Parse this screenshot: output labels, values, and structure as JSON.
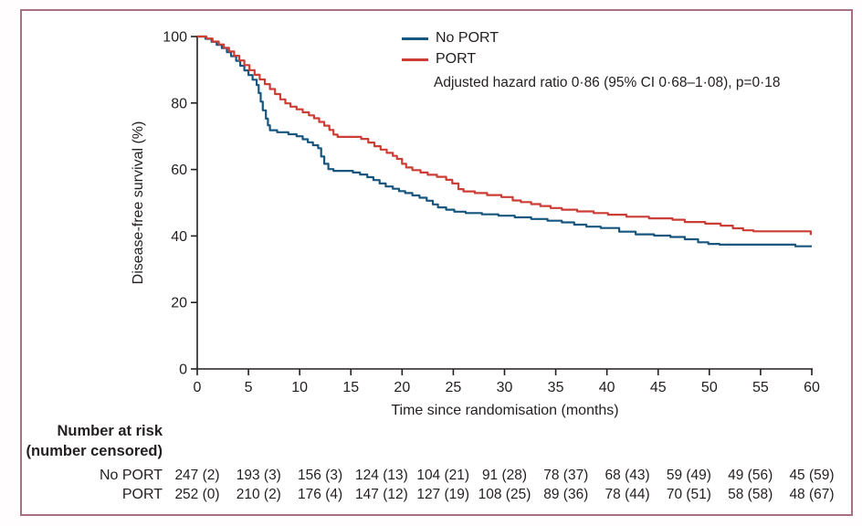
{
  "colors": {
    "no_port": "#17567f",
    "port": "#cc3d36",
    "axis": "#231f20",
    "frame_border": "#a87083"
  },
  "legend": {
    "items": [
      {
        "label": "No PORT",
        "color": "#17567f"
      },
      {
        "label": "PORT",
        "color": "#cc3d36"
      }
    ],
    "annotation": "Adjusted hazard ratio 0·86 (95% CI 0·68–1·08), p=0·18"
  },
  "axes": {
    "x_title": "Time since randomisation (months)",
    "y_title": "Disease-free survival (%)"
  },
  "chart_data": {
    "type": "line",
    "step": true,
    "title": "",
    "xlabel": "Time since randomisation (months)",
    "ylabel": "Disease-free survival (%)",
    "xlim": [
      0,
      60
    ],
    "ylim": [
      0,
      100
    ],
    "xticks": [
      0,
      5,
      10,
      15,
      20,
      25,
      30,
      35,
      40,
      45,
      50,
      55,
      60
    ],
    "yticks": [
      0,
      20,
      40,
      60,
      80,
      100
    ],
    "grid": false,
    "legend_position": "top-right",
    "annotation": "Adjusted hazard ratio 0·86 (95% CI 0·68–1·08), p=0·18",
    "series": [
      {
        "name": "No PORT",
        "color": "#17567f",
        "points": [
          [
            0,
            100
          ],
          [
            0.8,
            99.3
          ],
          [
            1.4,
            98.4
          ],
          [
            1.9,
            97.5
          ],
          [
            2.4,
            96.5
          ],
          [
            2.9,
            95.3
          ],
          [
            3.3,
            94.1
          ],
          [
            3.8,
            92.7
          ],
          [
            4.2,
            91.2
          ],
          [
            4.6,
            89.8
          ],
          [
            5.0,
            88.4
          ],
          [
            5.4,
            87.0
          ],
          [
            5.8,
            85.4
          ],
          [
            6.0,
            83.0
          ],
          [
            6.2,
            80.4
          ],
          [
            6.4,
            77.8
          ],
          [
            6.7,
            75.3
          ],
          [
            6.9,
            73.3
          ],
          [
            7.1,
            71.8
          ],
          [
            7.8,
            71.2
          ],
          [
            8.9,
            70.6
          ],
          [
            9.7,
            70.0
          ],
          [
            10.3,
            69.1
          ],
          [
            10.8,
            68.2
          ],
          [
            11.3,
            67.3
          ],
          [
            11.8,
            66.4
          ],
          [
            12.1,
            63.9
          ],
          [
            12.4,
            61.7
          ],
          [
            12.8,
            60.1
          ],
          [
            13.3,
            59.6
          ],
          [
            15.2,
            59.1
          ],
          [
            15.9,
            58.5
          ],
          [
            16.6,
            57.7
          ],
          [
            17.2,
            56.8
          ],
          [
            17.8,
            55.8
          ],
          [
            18.4,
            54.9
          ],
          [
            19.1,
            54.2
          ],
          [
            19.7,
            53.5
          ],
          [
            20.3,
            52.9
          ],
          [
            21.0,
            52.2
          ],
          [
            21.7,
            51.5
          ],
          [
            22.4,
            50.6
          ],
          [
            23.0,
            49.5
          ],
          [
            23.5,
            48.6
          ],
          [
            24.3,
            47.9
          ],
          [
            25.1,
            47.3
          ],
          [
            26.2,
            46.9
          ],
          [
            27.8,
            46.5
          ],
          [
            29.4,
            46.1
          ],
          [
            31.0,
            45.6
          ],
          [
            32.6,
            45.1
          ],
          [
            34.2,
            44.6
          ],
          [
            35.6,
            44.1
          ],
          [
            36.8,
            43.4
          ],
          [
            38.0,
            42.8
          ],
          [
            39.4,
            42.4
          ],
          [
            41.2,
            41.3
          ],
          [
            42.8,
            40.5
          ],
          [
            44.6,
            40.1
          ],
          [
            46.2,
            39.7
          ],
          [
            47.6,
            39.0
          ],
          [
            48.9,
            38.1
          ],
          [
            49.9,
            37.6
          ],
          [
            51.0,
            37.4
          ],
          [
            58.4,
            36.9
          ],
          [
            60,
            36.9
          ]
        ]
      },
      {
        "name": "PORT",
        "color": "#cc3d36",
        "points": [
          [
            0,
            100
          ],
          [
            0.9,
            99.4
          ],
          [
            1.5,
            98.5
          ],
          [
            2.1,
            97.6
          ],
          [
            2.6,
            96.6
          ],
          [
            3.1,
            95.5
          ],
          [
            3.6,
            94.2
          ],
          [
            4.1,
            92.8
          ],
          [
            4.6,
            91.4
          ],
          [
            5.1,
            89.9
          ],
          [
            5.6,
            88.5
          ],
          [
            6.1,
            87.1
          ],
          [
            6.6,
            85.7
          ],
          [
            7.1,
            84.2
          ],
          [
            7.6,
            82.7
          ],
          [
            8.1,
            81.1
          ],
          [
            8.6,
            79.9
          ],
          [
            9.1,
            78.9
          ],
          [
            9.7,
            78.1
          ],
          [
            10.3,
            77.2
          ],
          [
            10.9,
            76.3
          ],
          [
            11.4,
            75.4
          ],
          [
            11.9,
            74.3
          ],
          [
            12.4,
            73.2
          ],
          [
            12.9,
            71.9
          ],
          [
            13.3,
            70.5
          ],
          [
            13.7,
            69.8
          ],
          [
            16.0,
            69.2
          ],
          [
            16.7,
            68.1
          ],
          [
            17.3,
            67.0
          ],
          [
            17.9,
            66.0
          ],
          [
            18.5,
            65.0
          ],
          [
            19.1,
            64.1
          ],
          [
            19.5,
            63.2
          ],
          [
            20.0,
            61.7
          ],
          [
            20.4,
            60.6
          ],
          [
            21.0,
            59.8
          ],
          [
            21.8,
            59.1
          ],
          [
            22.5,
            58.4
          ],
          [
            23.4,
            57.8
          ],
          [
            24.3,
            56.9
          ],
          [
            24.9,
            55.8
          ],
          [
            25.5,
            54.1
          ],
          [
            26.0,
            53.4
          ],
          [
            27.1,
            52.9
          ],
          [
            28.3,
            52.3
          ],
          [
            29.7,
            51.7
          ],
          [
            30.8,
            50.7
          ],
          [
            31.6,
            50.2
          ],
          [
            32.6,
            49.6
          ],
          [
            33.5,
            49.0
          ],
          [
            34.5,
            48.4
          ],
          [
            35.6,
            47.9
          ],
          [
            37.1,
            47.4
          ],
          [
            38.7,
            46.9
          ],
          [
            40.1,
            46.4
          ],
          [
            41.9,
            45.8
          ],
          [
            44.1,
            45.3
          ],
          [
            46.4,
            44.9
          ],
          [
            47.6,
            44.2
          ],
          [
            49.6,
            43.7
          ],
          [
            51.1,
            43.1
          ],
          [
            52.3,
            42.3
          ],
          [
            53.3,
            41.7
          ],
          [
            54.3,
            41.4
          ],
          [
            59.7,
            41.4
          ],
          [
            59.9,
            40.3
          ]
        ]
      }
    ],
    "risk_table": {
      "header_line1": "Number at risk",
      "header_line2": "(number censored)",
      "times": [
        0,
        6,
        12,
        18,
        24,
        30,
        36,
        42,
        48,
        54,
        60
      ],
      "rows": [
        {
          "label": "No PORT",
          "values": [
            "247 (2)",
            "193 (3)",
            "156 (3)",
            "124 (13)",
            "104 (21)",
            "91 (28)",
            "78 (37)",
            "68 (43)",
            "59 (49)",
            "49 (56)",
            "45 (59)"
          ]
        },
        {
          "label": "PORT",
          "values": [
            "252 (0)",
            "210 (2)",
            "176 (4)",
            "147 (12)",
            "127 (19)",
            "108 (25)",
            "89 (36)",
            "78 (44)",
            "70 (51)",
            "58 (58)",
            "48 (67)"
          ]
        }
      ]
    }
  }
}
